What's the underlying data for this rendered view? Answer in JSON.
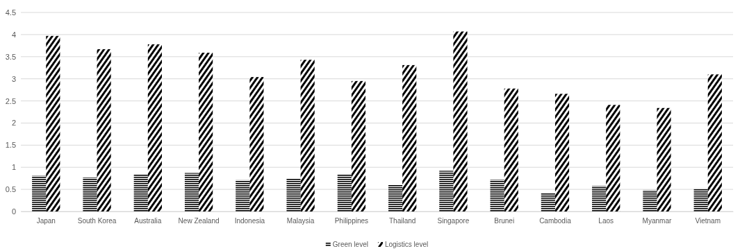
{
  "chart_data": {
    "type": "bar",
    "categories": [
      "Japan",
      "South Korea",
      "Australia",
      "New Zealand",
      "Indonesia",
      "Malaysia",
      "Philippines",
      "Thailand",
      "Singapore",
      "Brunei",
      "Cambodia",
      "Laos",
      "Myanmar",
      "Vietnam"
    ],
    "series": [
      {
        "name": "Green level",
        "color": "#000000",
        "values": [
          0.81,
          0.77,
          0.84,
          0.87,
          0.71,
          0.74,
          0.84,
          0.61,
          0.92,
          0.72,
          0.41,
          0.58,
          0.48,
          0.52
        ]
      },
      {
        "name": "Logistics level",
        "color": "#000000",
        "values": [
          3.97,
          3.67,
          3.78,
          3.59,
          3.04,
          3.43,
          2.95,
          3.31,
          4.07,
          2.78,
          2.66,
          2.41,
          2.34,
          3.1
        ]
      }
    ],
    "ylim": [
      0,
      4.5
    ],
    "yticks": [
      0,
      0.5,
      1,
      1.5,
      2,
      2.5,
      3,
      3.5,
      4,
      4.5
    ],
    "grid": "y",
    "legend": "bottom"
  }
}
